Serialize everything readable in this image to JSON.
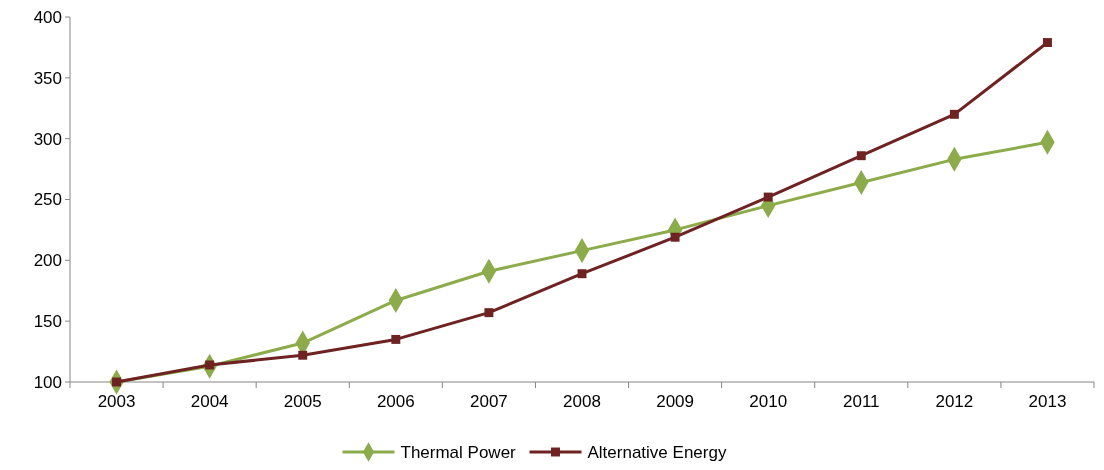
{
  "chart_data": {
    "type": "line",
    "categories": [
      "2003",
      "2004",
      "2005",
      "2006",
      "2007",
      "2008",
      "2009",
      "2010",
      "2011",
      "2012",
      "2013"
    ],
    "series": [
      {
        "name": "Thermal Power",
        "color": "#8cab4b",
        "marker": "diamond",
        "values": [
          100,
          113,
          132,
          167,
          191,
          208,
          225,
          245,
          264,
          283,
          297
        ]
      },
      {
        "name": "Alternative Energy",
        "color": "#6e2222",
        "marker": "square",
        "values": [
          100,
          114,
          122,
          135,
          157,
          189,
          219,
          252,
          286,
          320,
          379
        ]
      }
    ],
    "ylim": [
      100,
      400
    ],
    "yticks": [
      100,
      150,
      200,
      250,
      300,
      350,
      400
    ],
    "grid": false,
    "legend": "bottom",
    "line_style": "solid"
  }
}
